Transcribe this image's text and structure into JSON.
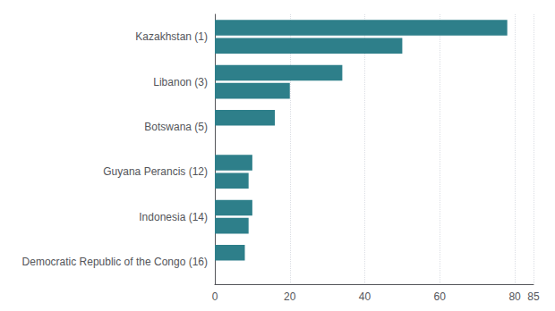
{
  "chart_data": {
    "type": "bar",
    "orientation": "horizontal",
    "categories": [
      "Kazakhstan (1)",
      "Libanon (3)",
      "Botswana (5)",
      "Guyana Perancis (12)",
      "Indonesia (14)",
      "Democratic Republic of the Congo (16)"
    ],
    "series": [
      {
        "color": "#2e7f8a",
        "values": [
          78,
          34,
          16,
          10,
          10,
          8
        ]
      },
      {
        "color": "#2e7f8a",
        "values": [
          50,
          20,
          null,
          9,
          9,
          null
        ]
      }
    ],
    "xlim": [
      0,
      85
    ],
    "xticks": [
      0,
      20,
      40,
      60,
      80
    ],
    "grid": true
  }
}
